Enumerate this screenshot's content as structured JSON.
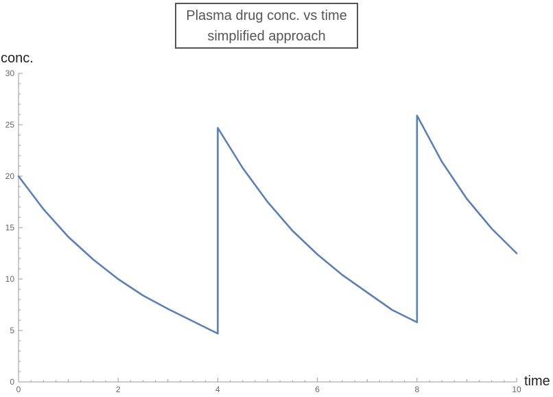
{
  "chart_data": {
    "type": "line",
    "title": "Plasma drug conc. vs time",
    "subtitle": "simplified approach",
    "xlabel": "time",
    "ylabel": "conc.",
    "xlim": [
      0,
      10
    ],
    "ylim": [
      0,
      30
    ],
    "x_ticks": [
      "0",
      "2",
      "4",
      "6",
      "8",
      "10"
    ],
    "y_ticks": [
      "0",
      "5",
      "10",
      "15",
      "20",
      "25",
      "30"
    ],
    "grid": false,
    "line_color": "#5b7fb4",
    "series": [
      {
        "x": [
          0,
          0.5,
          1,
          1.5,
          2,
          2.5,
          3,
          3.5,
          4,
          4,
          4.5,
          5,
          5.5,
          6,
          6.5,
          7,
          7.5,
          8,
          8,
          8.5,
          9,
          9.5,
          10
        ],
        "values": [
          20.0,
          16.8,
          14.1,
          11.9,
          10.0,
          8.4,
          7.1,
          5.9,
          4.7,
          24.7,
          20.8,
          17.5,
          14.7,
          12.4,
          10.4,
          8.7,
          7.0,
          5.8,
          25.9,
          21.4,
          17.8,
          14.9,
          12.5
        ]
      }
    ]
  }
}
